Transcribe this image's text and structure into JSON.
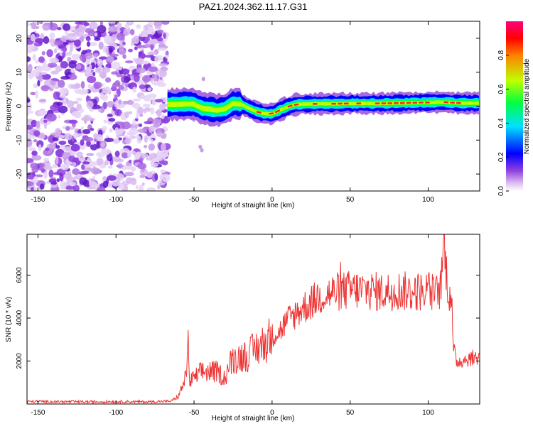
{
  "title": "PAZ1.2024.362.11.17.G31",
  "colorbar_label": "Normalized spectral amplitude",
  "chart_data": [
    {
      "type": "heatmap",
      "name": "spectrogram",
      "xlabel": "Height of straight line (km)",
      "ylabel": "Frequency (Hz)",
      "xlim": [
        -157,
        133
      ],
      "ylim": [
        -25,
        25
      ],
      "xticks": [
        -150,
        -100,
        -50,
        0,
        50,
        100
      ],
      "yticks": [
        -20,
        -10,
        0,
        10,
        20
      ],
      "colorbar": {
        "range": [
          0,
          1
        ],
        "ticks": [
          "0.0",
          "0.2",
          "0.4",
          "0.6",
          "0.8"
        ],
        "colormap": [
          "#ffffff",
          "#d8b8f0",
          "#9040e0",
          "#0000ff",
          "#00e0ff",
          "#00ff40",
          "#c0ff00",
          "#ff8000",
          "#ff0000",
          "#ff0080"
        ]
      },
      "noise_region_x": [
        -157,
        -67
      ],
      "signal_track": {
        "x": [
          -67,
          -60,
          -55,
          -50,
          -45,
          -40,
          -35,
          -30,
          -25,
          -20,
          -15,
          -10,
          -5,
          0,
          5,
          10,
          15,
          20,
          30,
          40,
          50,
          60,
          70,
          80,
          90,
          100,
          110,
          120,
          133
        ],
        "freq_hz": [
          0.5,
          0.5,
          0.7,
          0.6,
          -0.6,
          -0.9,
          -1.2,
          -0.8,
          0.8,
          0.6,
          -0.6,
          -1.6,
          -2.2,
          -2.3,
          -1.2,
          -0.2,
          0.5,
          0.6,
          0.7,
          0.7,
          0.8,
          0.8,
          0.8,
          0.9,
          1.0,
          1.1,
          1.2,
          0.9,
          0.9
        ]
      }
    },
    {
      "type": "line",
      "name": "snr",
      "xlabel": "Height of straight line (km)",
      "ylabel": "SNR (10 * v/v)",
      "xlim": [
        -157,
        133
      ],
      "ylim": [
        0,
        7900
      ],
      "xticks": [
        -150,
        -100,
        -50,
        0,
        50,
        100
      ],
      "yticks": [
        2000,
        4000,
        6000
      ],
      "color": "#ee3333",
      "series": [
        {
          "x": [
            -157,
            -140,
            -120,
            -100,
            -80,
            -65,
            -60,
            -57,
            -55,
            -54,
            -53,
            -50,
            -45,
            -40,
            -35,
            -30,
            -28,
            -25,
            -20,
            -15,
            -10,
            -5,
            0,
            5,
            10,
            15,
            20,
            25,
            30,
            40,
            50,
            60,
            70,
            80,
            90,
            100,
            105,
            108,
            110,
            113,
            115,
            116,
            118,
            120,
            125,
            133
          ],
          "y": [
            120,
            110,
            100,
            110,
            100,
            130,
            350,
            900,
            1300,
            3500,
            1000,
            1200,
            1500,
            1500,
            1500,
            1200,
            1700,
            2100,
            2200,
            2300,
            2600,
            2800,
            3200,
            3400,
            3900,
            4200,
            4500,
            4700,
            5000,
            5200,
            5300,
            5300,
            5200,
            5300,
            5200,
            5300,
            5100,
            5400,
            7500,
            5200,
            5000,
            2600,
            2000,
            2000,
            2100,
            2200
          ]
        }
      ]
    }
  ]
}
